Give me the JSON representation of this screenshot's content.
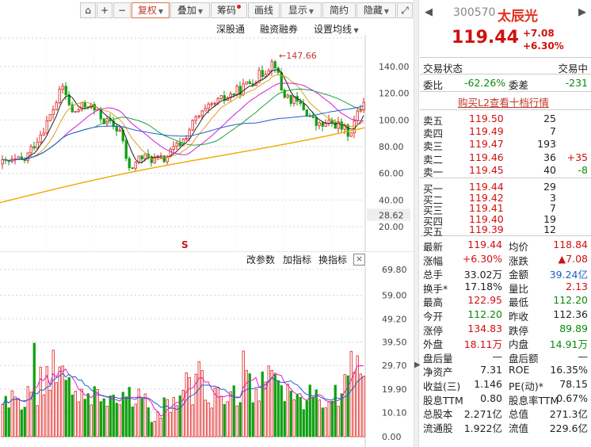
{
  "toolbar": {
    "fuquan": "复权",
    "diejia": "叠加",
    "chouma": "筹码",
    "huaxian": "画线",
    "xianshi": "显示",
    "jianyue": "简约",
    "yincang": "隐藏"
  },
  "subtoolbar": {
    "shengangtong": "深股通",
    "rongzi": "融资融券",
    "junxian": "设置均线"
  },
  "kchart": {
    "high_label": "147.66",
    "y_ticks": [
      "140.00",
      "120.00",
      "100.00",
      "80.00",
      "60.00",
      "40.00",
      "28.62",
      "20.00"
    ],
    "marker": "S"
  },
  "volume": {
    "gaicanshu": "改参数",
    "jiazhibiao": "加指标",
    "huanzhibiao": "换指标",
    "close": "×",
    "y_ticks": [
      "69.80",
      "59.00",
      "49.20",
      "39.50",
      "29.70",
      "19.90",
      "10.10",
      "0.00"
    ]
  },
  "quote": {
    "code": "300570",
    "name": "太辰光",
    "price": "119.44",
    "change": "+7.08",
    "change_pct": "+6.30%",
    "status_label": "交易状态",
    "status_value": "交易中",
    "weibi_label": "委比",
    "weibi_value": "-62.26%",
    "weicha_label": "委差",
    "weicha_value": "-231",
    "l2_link": "购买L2查看十档行情",
    "asks": [
      {
        "label": "卖五",
        "price": "119.50",
        "vol": "25",
        "chg": ""
      },
      {
        "label": "卖四",
        "price": "119.49",
        "vol": "7",
        "chg": ""
      },
      {
        "label": "卖三",
        "price": "119.47",
        "vol": "193",
        "chg": ""
      },
      {
        "label": "卖二",
        "price": "119.46",
        "vol": "36",
        "chg": "+35"
      },
      {
        "label": "卖一",
        "price": "119.45",
        "vol": "40",
        "chg": "-8"
      }
    ],
    "bids": [
      {
        "label": "买一",
        "price": "119.44",
        "vol": "29"
      },
      {
        "label": "买二",
        "price": "119.42",
        "vol": "3"
      },
      {
        "label": "买三",
        "price": "119.41",
        "vol": "7"
      },
      {
        "label": "买四",
        "price": "119.40",
        "vol": "19"
      },
      {
        "label": "买五",
        "price": "119.39",
        "vol": "12"
      }
    ],
    "stats": [
      {
        "l1": "最新",
        "v1": "119.44",
        "c1": "red",
        "l2": "均价",
        "v2": "118.84",
        "c2": "red"
      },
      {
        "l1": "涨幅",
        "v1": "+6.30%",
        "c1": "red",
        "l2": "涨跌",
        "v2": "▲7.08",
        "c2": "red"
      },
      {
        "l1": "总手",
        "v1": "33.02万",
        "c1": "",
        "l2": "金额",
        "v2": "39.24亿",
        "c2": "blue"
      },
      {
        "l1": "换手*",
        "v1": "17.18%",
        "c1": "",
        "l2": "量比",
        "v2": "2.13",
        "c2": "red"
      },
      {
        "l1": "最高",
        "v1": "122.95",
        "c1": "red",
        "l2": "最低",
        "v2": "112.20",
        "c2": "green"
      },
      {
        "l1": "今开",
        "v1": "112.20",
        "c1": "green",
        "l2": "昨收",
        "v2": "112.36",
        "c2": ""
      },
      {
        "l1": "涨停",
        "v1": "134.83",
        "c1": "red",
        "l2": "跌停",
        "v2": "89.89",
        "c2": "green"
      },
      {
        "l1": "外盘",
        "v1": "18.11万",
        "c1": "red",
        "l2": "内盘",
        "v2": "14.91万",
        "c2": "green"
      },
      {
        "l1": "盘后量",
        "v1": "—",
        "c1": "",
        "l2": "盘后额",
        "v2": "—",
        "c2": ""
      },
      {
        "l1": "净资产",
        "v1": "7.31",
        "c1": "",
        "l2": "ROE",
        "v2": "16.35%",
        "c2": ""
      },
      {
        "l1": "收益(三)",
        "v1": "1.146",
        "c1": "",
        "l2": "PE(动)*",
        "v2": "78.15",
        "c2": ""
      },
      {
        "l1": "股息TTM",
        "v1": "0.80",
        "c1": "",
        "l2": "股息率TTM",
        "v2": "0.67%",
        "c2": ""
      },
      {
        "l1": "总股本",
        "v1": "2.271亿",
        "c1": "",
        "l2": "总值",
        "v2": "271.3亿",
        "c2": ""
      },
      {
        "l1": "流通股",
        "v1": "1.922亿",
        "c1": "",
        "l2": "流值",
        "v2": "229.6亿",
        "c2": ""
      }
    ]
  }
}
